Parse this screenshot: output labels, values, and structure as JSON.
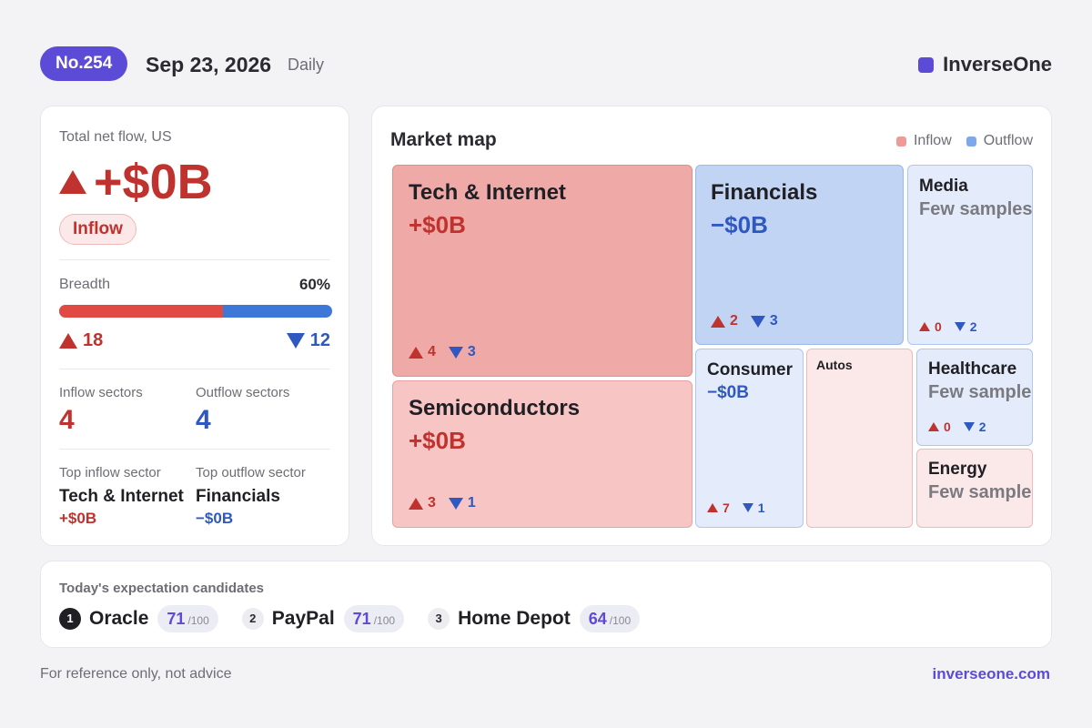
{
  "header": {
    "issue": "No.254",
    "date": "Sep 23, 2026",
    "frequency": "Daily",
    "brand": "InverseOne",
    "brand_color": "#5b4bd6"
  },
  "summary": {
    "total_label": "Total net flow, US",
    "total_value": "+$0B",
    "direction_pill": "Inflow",
    "breadth_label": "Breadth",
    "breadth_pct": "60%",
    "breadth_fraction": 0.6,
    "up_count": "18",
    "down_count": "12",
    "inflow_sectors_label": "Inflow sectors",
    "inflow_sectors": "4",
    "outflow_sectors_label": "Outflow sectors",
    "outflow_sectors": "4",
    "top_inflow_label": "Top inflow sector",
    "top_inflow_name": "Tech & Internet",
    "top_inflow_value": "+$0B",
    "top_outflow_label": "Top outflow sector",
    "top_outflow_name": "Financials",
    "top_outflow_value": "−$0B"
  },
  "map": {
    "title": "Market map",
    "legend_inflow": "Inflow",
    "legend_outflow": "Outflow",
    "tiles": [
      {
        "name": "Tech & Internet",
        "value": "+$0B",
        "up": "4",
        "down": "3",
        "flow": "inflow"
      },
      {
        "name": "Financials",
        "value": "−$0B",
        "up": "2",
        "down": "3",
        "flow": "outflow"
      },
      {
        "name": "Media",
        "note": "Few samples",
        "up": "0",
        "down": "2",
        "flow": "outflow"
      },
      {
        "name": "Semiconductors",
        "value": "+$0B",
        "up": "3",
        "down": "1",
        "flow": "inflow"
      },
      {
        "name": "Consumer",
        "value": "−$0B",
        "up": "7",
        "down": "1",
        "flow": "outflow"
      },
      {
        "name": "Autos",
        "flow": "inflow"
      },
      {
        "name": "Healthcare",
        "note": "Few samples",
        "up": "0",
        "down": "2",
        "flow": "outflow"
      },
      {
        "name": "Energy",
        "note": "Few samples",
        "flow": "inflow"
      }
    ]
  },
  "candidates": {
    "title": "Today's expectation candidates",
    "items": [
      {
        "rank": "1",
        "name": "Oracle",
        "score": "71",
        "max": "/100"
      },
      {
        "rank": "2",
        "name": "PayPal",
        "score": "71",
        "max": "/100"
      },
      {
        "rank": "3",
        "name": "Home Depot",
        "score": "64",
        "max": "/100"
      }
    ]
  },
  "footer": {
    "disclaimer": "For reference only, not advice",
    "site": "inverseone.com"
  },
  "colors": {
    "inflow": "#c0322e",
    "outflow": "#2f58c0",
    "accent": "#5b4bd6"
  }
}
